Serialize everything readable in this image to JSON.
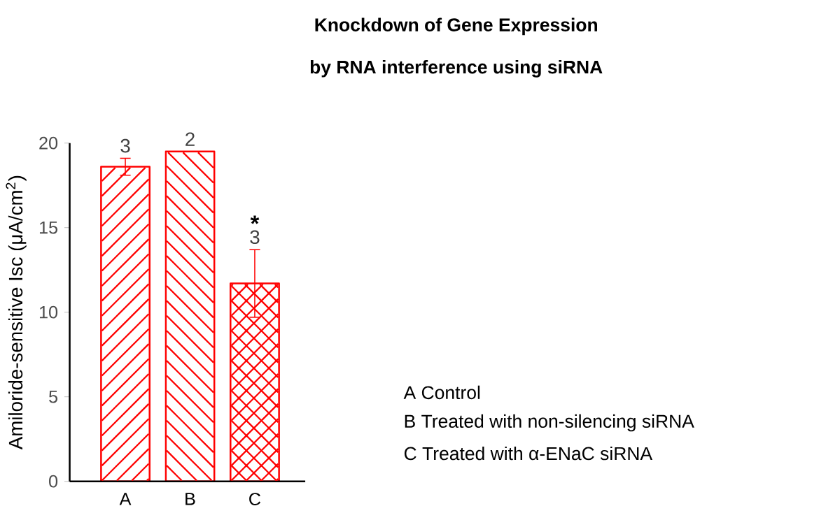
{
  "chart_data": {
    "type": "bar",
    "title": "Knockdown of Gene Expression",
    "subtitle": "by RNA interference using siRNA",
    "ylabel": "Amiloride-sensitive Isc (μA/cm$^{2}$)",
    "categories": [
      "A",
      "B",
      "C"
    ],
    "values": [
      18.6,
      19.5,
      11.7
    ],
    "errors": [
      0.5,
      null,
      2.0
    ],
    "color": "#ff0000",
    "ylim": [
      0,
      20
    ],
    "yticks": [
      0,
      5,
      10,
      15,
      20
    ],
    "annotations": [
      {
        "text": "3",
        "x": "A",
        "y": 19.1
      },
      {
        "text": "2",
        "x": "B",
        "y": 19.5
      },
      {
        "text": "3",
        "x": "C",
        "y": 13.7
      },
      "*",
      "A  Control",
      "B  Treated with non-silencing siRNA",
      "C  Treated with α-ENaC siRNA"
    ]
  }
}
